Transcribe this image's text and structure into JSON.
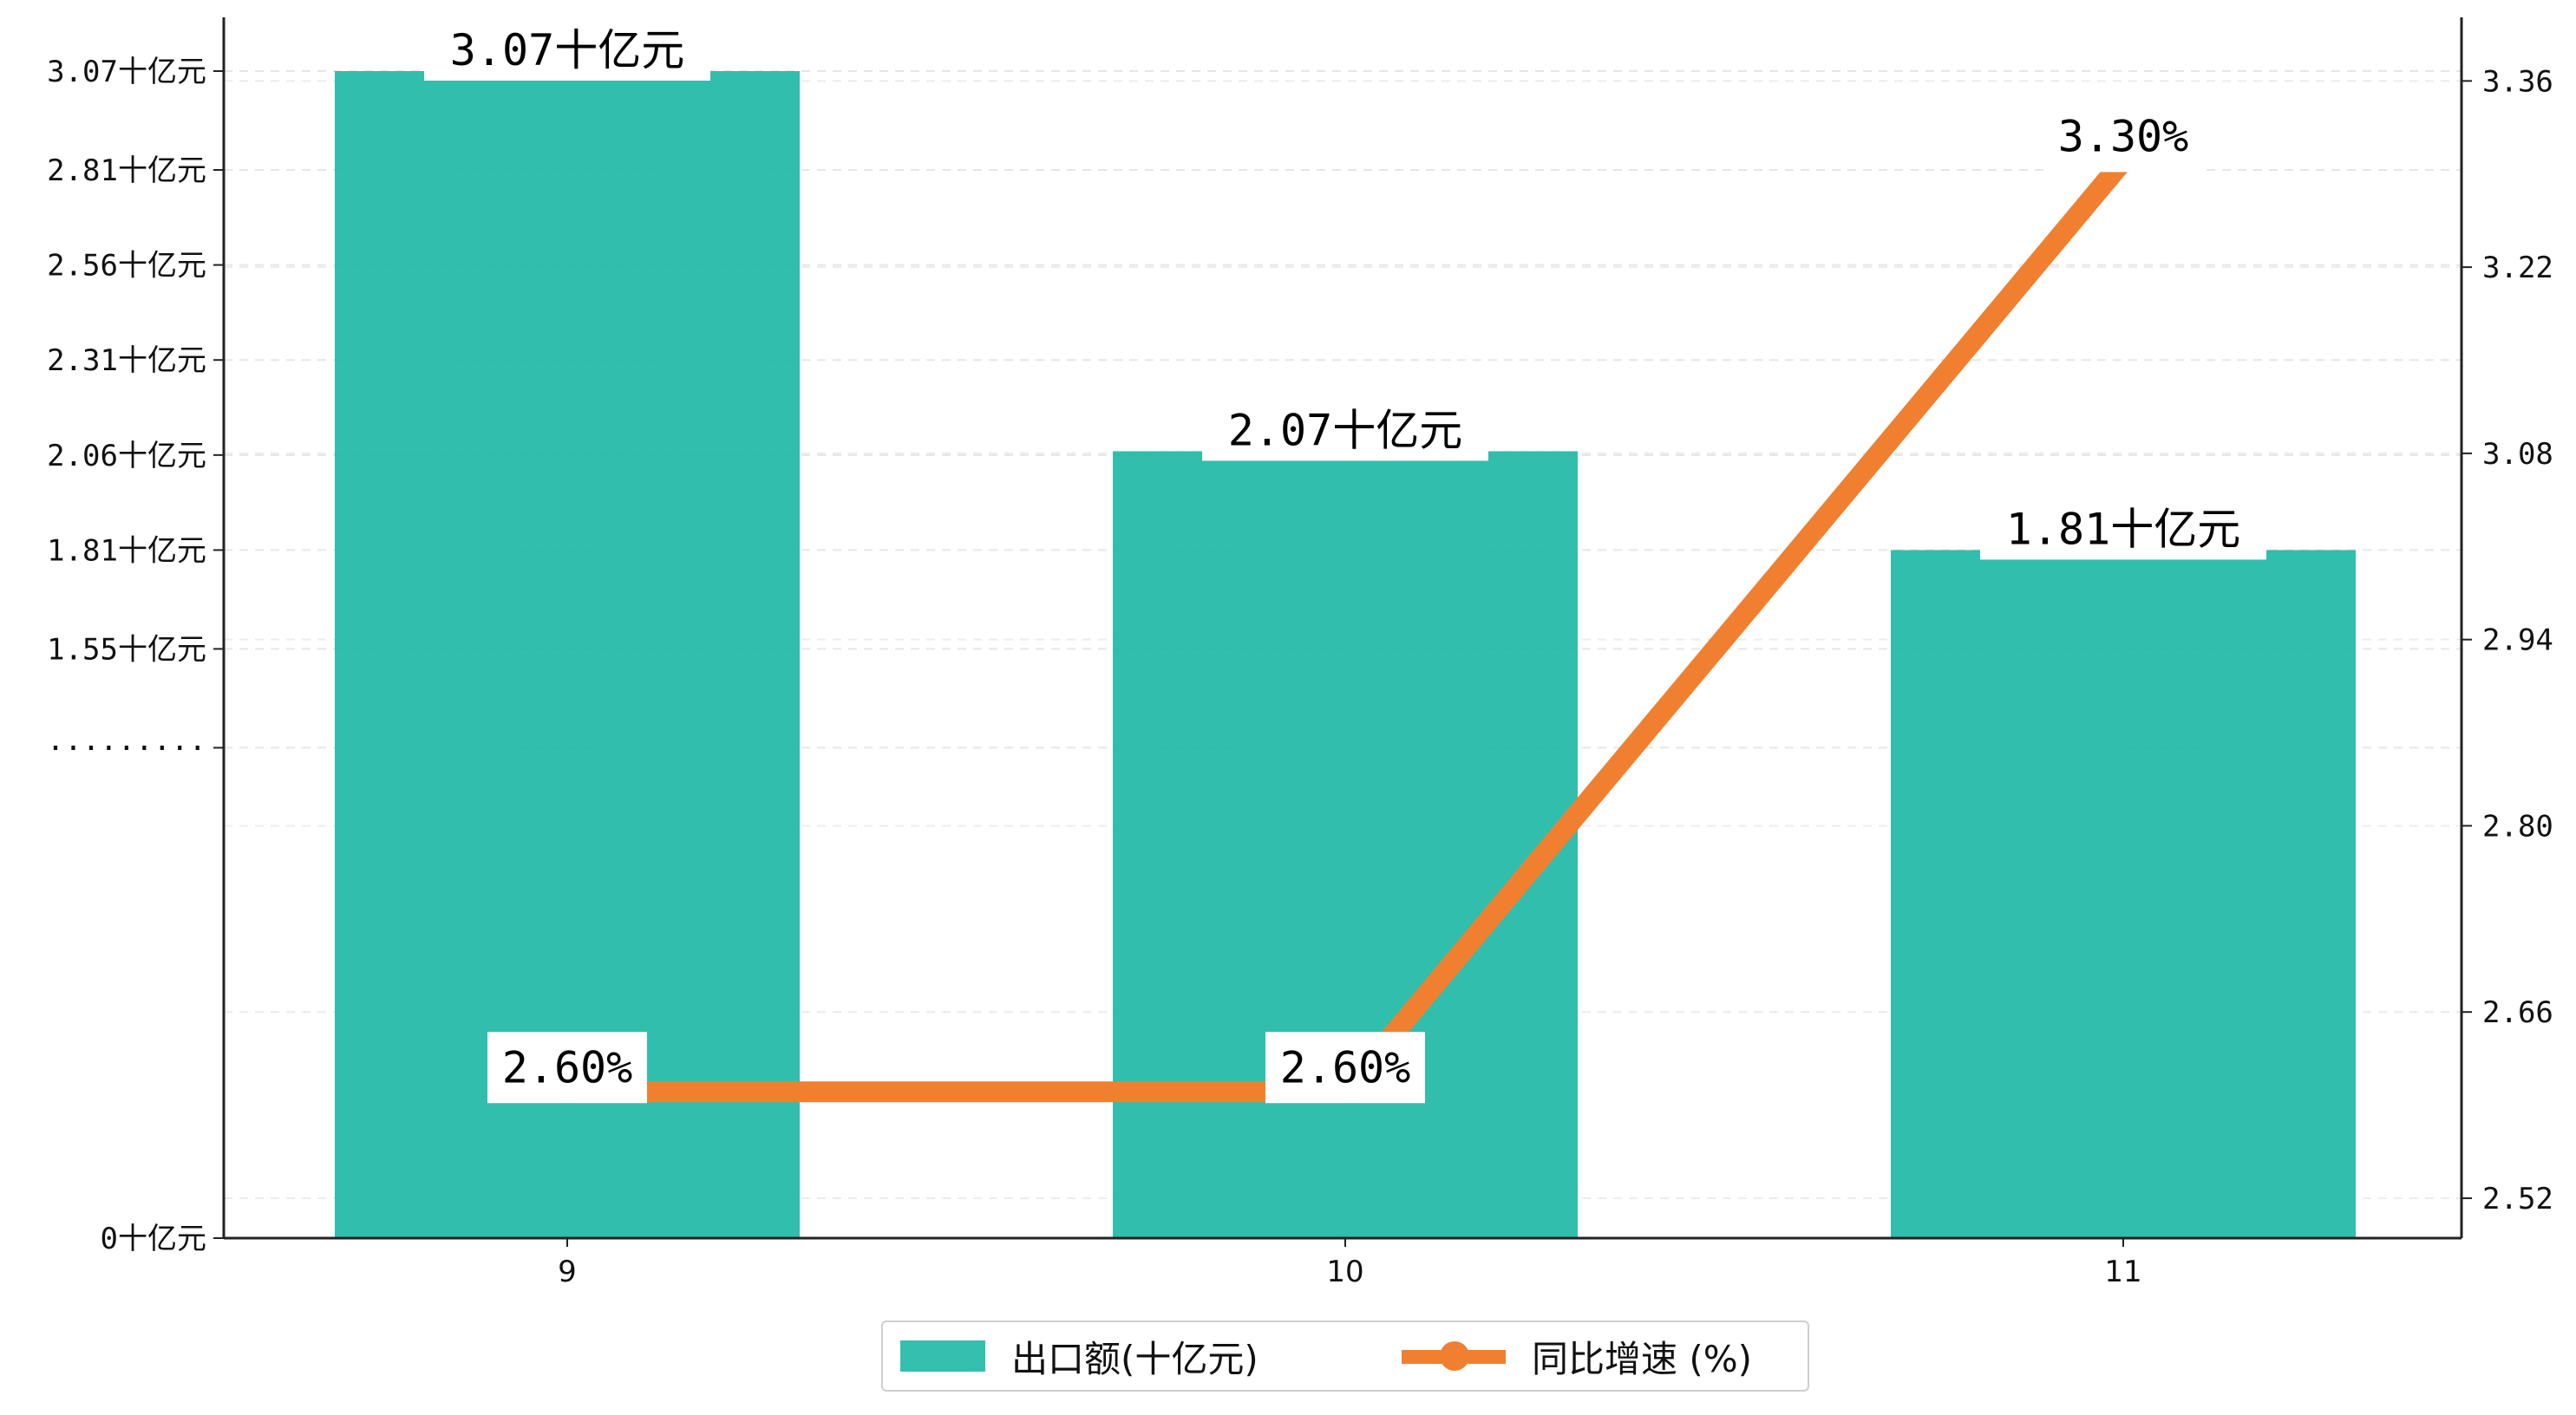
{
  "chart_data": {
    "type": "bar",
    "categories": [
      "9",
      "10",
      "11"
    ],
    "series": [
      {
        "name": "出口额(十亿元)",
        "type": "bar",
        "axis": "left",
        "values": [
          3.07,
          2.07,
          1.81
        ],
        "labels": [
          "3.07十亿元",
          "2.07十亿元",
          "1.81十亿元"
        ],
        "color": "#1fb8a6"
      },
      {
        "name": "同比增速 (%)",
        "type": "line",
        "axis": "right",
        "values": [
          2.6,
          2.6,
          3.3
        ],
        "labels": [
          "2.60%",
          "2.60%",
          "3.30%"
        ],
        "color": "#f08030"
      }
    ],
    "left_axis": {
      "ticks": [
        0,
        1.29,
        1.55,
        1.81,
        2.06,
        2.31,
        2.56,
        2.81,
        3.07
      ],
      "tick_labels": [
        "0十亿元",
        "·········",
        "1.55十亿元",
        "1.81十亿元",
        "2.06十亿元",
        "2.31十亿元",
        "2.56十亿元",
        "2.81十亿元",
        "3.07十亿元"
      ]
    },
    "right_axis": {
      "ylim": [
        2.49,
        3.4
      ],
      "ticks": [
        2.52,
        2.66,
        2.8,
        2.94,
        3.08,
        3.22,
        3.36
      ],
      "tick_labels": [
        "2.52",
        "2.66",
        "2.80",
        "2.94",
        "3.08",
        "3.22",
        "3.36"
      ]
    },
    "grid": true,
    "legend_position": "bottom-center"
  }
}
